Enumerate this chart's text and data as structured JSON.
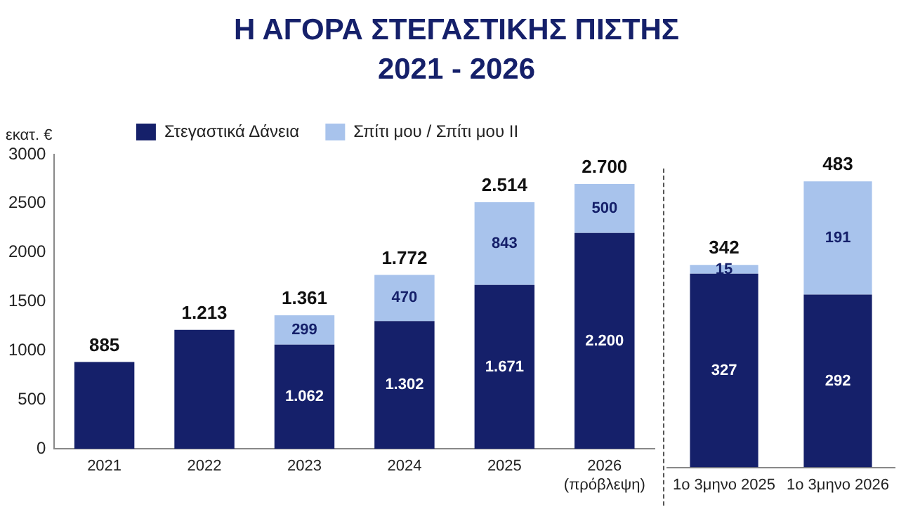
{
  "chart_data": [
    {
      "type": "bar",
      "title": "Η ΑΓΟΡΑ ΣΤΕΓΑΣΤΙΚΗΣ ΠΙΣΤΗΣ",
      "subtitle": "2021 - 2026",
      "ylabel": "εκατ. €",
      "stacked": true,
      "legend": "top",
      "grid": false,
      "categories": [
        "2021",
        "2022",
        "2023",
        "2024",
        "2025",
        "2026\n(πρόβλεψη)"
      ],
      "ylim": [
        0,
        3000
      ],
      "yticks": [
        0,
        500,
        1000,
        1500,
        2000,
        2500,
        3000
      ],
      "series": [
        {
          "name": "Στεγαστικά Δάνεια",
          "color": "#15206a",
          "values": [
            885,
            1213,
            1062,
            1302,
            1671,
            2200
          ],
          "value_labels": [
            null,
            null,
            "1.062",
            "1.302",
            "1.671",
            "2.200"
          ]
        },
        {
          "name": "Σπίτι μου / Σπίτι μου ΙΙ",
          "color": "#a8c3ec",
          "values": [
            null,
            null,
            299,
            470,
            843,
            500
          ],
          "value_labels": [
            null,
            null,
            "299",
            "470",
            "843",
            "500"
          ]
        }
      ],
      "totals": [
        "885",
        "1.213",
        "1.361",
        "1.772",
        "2.514",
        "2.700"
      ]
    },
    {
      "type": "bar",
      "stacked": true,
      "legend": false,
      "grid": false,
      "tick_labels": "x",
      "categories": [
        "1ο 3μηνο 2025",
        "1ο 3μηνο 2026"
      ],
      "series": [
        {
          "color": "#15206a",
          "values": [
            327,
            292
          ],
          "value_labels": [
            "327",
            "292"
          ]
        },
        {
          "color": "#a8c3ec",
          "values": [
            15,
            191
          ],
          "value_labels": [
            "15",
            "191"
          ]
        }
      ],
      "totals": [
        "342",
        "483"
      ]
    }
  ]
}
